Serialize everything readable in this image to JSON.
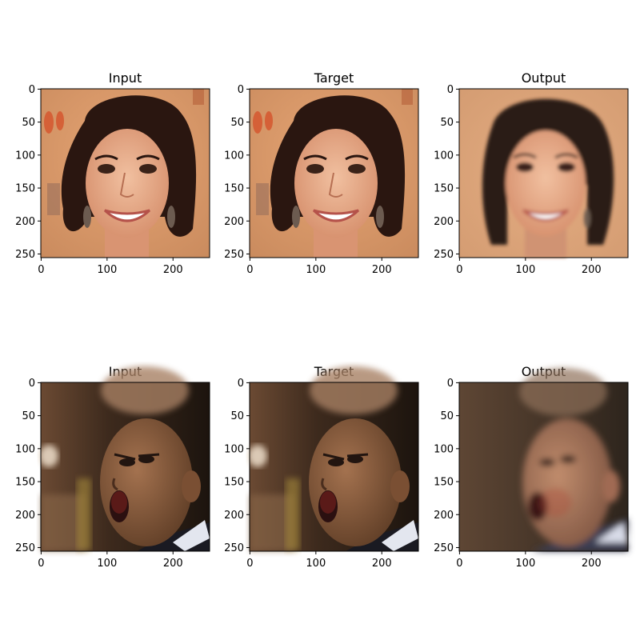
{
  "figure": {
    "rows": [
      {
        "panels": [
          {
            "title": "Input",
            "image": "portrait-woman-smiling-orange-background"
          },
          {
            "title": "Target",
            "image": "portrait-woman-smiling-orange-background"
          },
          {
            "title": "Output",
            "image": "portrait-woman-smiling-generated-smooth"
          }
        ]
      },
      {
        "panels": [
          {
            "title": "Input",
            "image": "bald-man-shouting-dark-background"
          },
          {
            "title": "Target",
            "image": "bald-man-shouting-dark-background"
          },
          {
            "title": "Output",
            "image": "bald-man-shouting-generated-blurry"
          }
        ]
      }
    ],
    "x_ticks": [
      "0",
      "100",
      "200"
    ],
    "y_ticks": [
      "0",
      "50",
      "100",
      "150",
      "200",
      "250"
    ]
  }
}
